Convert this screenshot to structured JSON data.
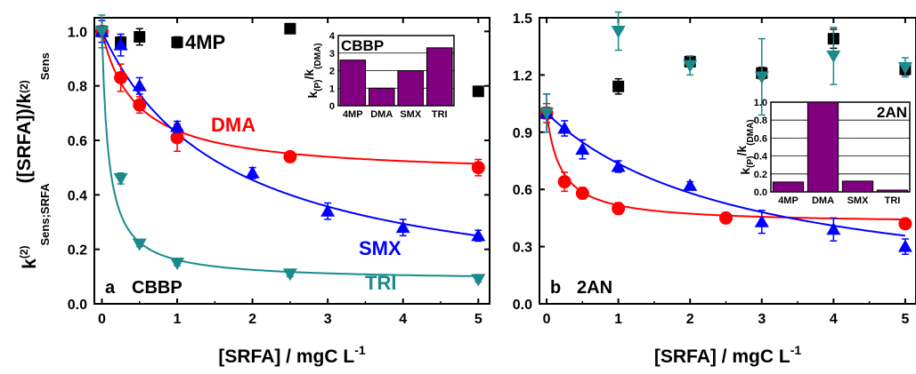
{
  "colors": {
    "4MP": "#000000",
    "DMA": "#ff0000",
    "SMX": "#0000ff",
    "TRI": "#1a8a8a",
    "bar": "#800080"
  },
  "chart_data": [
    {
      "type": "scatter",
      "panel": "a",
      "panel_label": "a",
      "sensitizer_label": "CBBP",
      "xlabel": "[SRFA] / mgC L-1",
      "ylabel": "k(2)Sens;SRFA([SRFA])/k(2)Sens",
      "xlim": [
        -0.1,
        5.15
      ],
      "ylim": [
        0,
        1.05
      ],
      "xticks": [
        0,
        1,
        2,
        3,
        4,
        5
      ],
      "yticks": [
        "0.0",
        "0.2",
        "0.4",
        "0.6",
        "0.8",
        "1.0"
      ],
      "series": [
        {
          "name": "4MP",
          "marker": "square",
          "fit": false,
          "x": [
            0,
            0.25,
            0.5,
            1,
            2.5,
            5
          ],
          "y": [
            1.0,
            0.96,
            0.98,
            0.96,
            1.01,
            0.78
          ],
          "err": [
            0.02,
            0.02,
            0.03,
            0.02,
            0.01,
            0.01
          ]
        },
        {
          "name": "DMA",
          "marker": "circle",
          "fit": true,
          "x": [
            0,
            0.25,
            0.5,
            1,
            2.5,
            5
          ],
          "y": [
            1.0,
            0.83,
            0.73,
            0.61,
            0.54,
            0.5
          ],
          "err": [
            0.02,
            0.05,
            0.03,
            0.05,
            0.01,
            0.03
          ]
        },
        {
          "name": "SMX",
          "marker": "triangle-up",
          "fit": true,
          "x": [
            0,
            0.25,
            0.5,
            1,
            2,
            3,
            4,
            5
          ],
          "y": [
            1.0,
            0.95,
            0.8,
            0.65,
            0.48,
            0.34,
            0.28,
            0.25
          ],
          "err": [
            0.04,
            0.04,
            0.03,
            0.02,
            0.02,
            0.03,
            0.03,
            0.02
          ]
        },
        {
          "name": "TRI",
          "marker": "triangle-down",
          "fit": true,
          "x": [
            0,
            0.25,
            0.5,
            1,
            2.5,
            5
          ],
          "y": [
            1.0,
            0.46,
            0.22,
            0.15,
            0.11,
            0.09
          ],
          "err": [
            0.06,
            0.02,
            0.01,
            0.01,
            0.01,
            0.01
          ]
        }
      ],
      "inset": {
        "type": "bar",
        "title": "CBBP",
        "ylabel": "k(P)/k(DMA)",
        "categories": [
          "4MP",
          "DMA",
          "SMX",
          "TRI"
        ],
        "values": [
          2.6,
          1.0,
          2.0,
          3.3
        ],
        "ylim": [
          0,
          4
        ],
        "yticks": [
          "0",
          "1",
          "2",
          "3",
          "4"
        ]
      }
    },
    {
      "type": "scatter",
      "panel": "b",
      "panel_label": "b",
      "sensitizer_label": "2AN",
      "xlabel": "[SRFA] / mgC L-1",
      "ylabel": "",
      "xlim": [
        -0.1,
        5.15
      ],
      "ylim": [
        0,
        1.5
      ],
      "xticks": [
        0,
        1,
        2,
        3,
        4,
        5
      ],
      "yticks": [
        "0.0",
        "0.3",
        "0.6",
        "0.9",
        "1.2",
        "1.5"
      ],
      "series": [
        {
          "name": "4MP",
          "marker": "square",
          "fit": false,
          "x": [
            0,
            1,
            2,
            3,
            4,
            5
          ],
          "y": [
            1.0,
            1.14,
            1.27,
            1.21,
            1.39,
            1.23
          ],
          "err": [
            0.03,
            0.04,
            0.02,
            0.03,
            0.05,
            0.03
          ]
        },
        {
          "name": "DMA",
          "marker": "circle",
          "fit": true,
          "x": [
            0,
            0.25,
            0.5,
            1,
            2.5,
            5
          ],
          "y": [
            1.0,
            0.64,
            0.58,
            0.5,
            0.45,
            0.42
          ],
          "err": [
            0.05,
            0.05,
            0.03,
            0.03,
            0.02,
            0.02
          ]
        },
        {
          "name": "SMX",
          "marker": "triangle-up",
          "fit": true,
          "x": [
            0,
            0.25,
            0.5,
            1,
            2,
            3,
            4,
            5
          ],
          "y": [
            1.0,
            0.92,
            0.81,
            0.72,
            0.62,
            0.43,
            0.39,
            0.3
          ],
          "err": [
            0.1,
            0.04,
            0.05,
            0.03,
            0.02,
            0.06,
            0.06,
            0.04
          ]
        },
        {
          "name": "TRI",
          "marker": "triangle-down",
          "fit": false,
          "x": [
            0,
            1,
            2,
            3,
            4,
            5
          ],
          "y": [
            1.0,
            1.43,
            1.25,
            1.19,
            1.3,
            1.24
          ],
          "err": [
            0.1,
            0.1,
            0.05,
            0.2,
            0.15,
            0.05
          ]
        }
      ],
      "inset": {
        "type": "bar",
        "title": "2AN",
        "ylabel": "k(P)/k(DMA)",
        "categories": [
          "4MP",
          "DMA",
          "SMX",
          "TRI"
        ],
        "values": [
          0.11,
          1.0,
          0.12,
          0.02
        ],
        "ylim": [
          0,
          1.0
        ],
        "yticks": [
          "0.0",
          "0.2",
          "0.4",
          "0.6",
          "0.8",
          "1.0"
        ]
      }
    }
  ]
}
